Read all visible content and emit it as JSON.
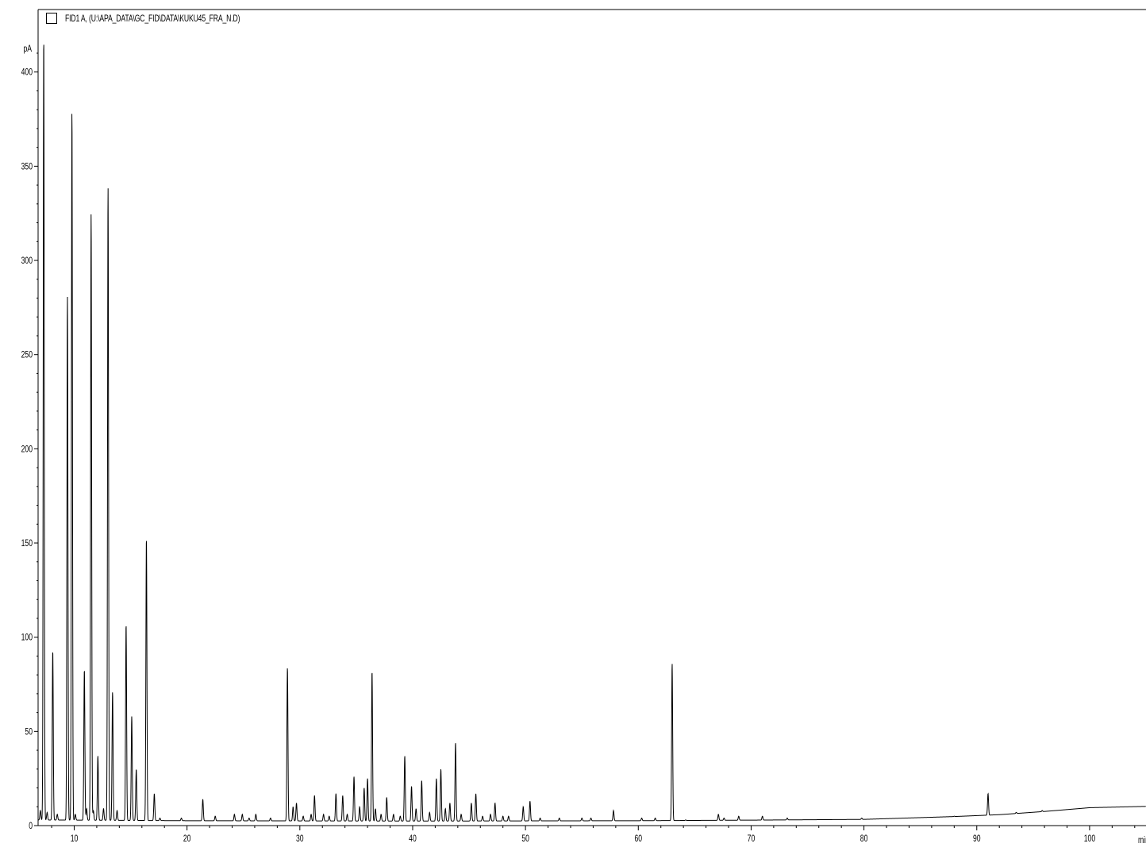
{
  "legend": {
    "label": "FID1 A, (U:\\APA_DATA\\GC_FID\\DATA\\KUKU45_FRA_N.D)"
  },
  "chart_data": {
    "type": "line",
    "title": "",
    "xlabel": "min",
    "ylabel": "pA",
    "xlim": [
      6.8,
      105
    ],
    "ylim": [
      0,
      418
    ],
    "x_ticks": [
      10,
      20,
      30,
      40,
      50,
      60,
      70,
      80,
      90,
      100
    ],
    "y_ticks": [
      0,
      50,
      100,
      150,
      200,
      250,
      300,
      350,
      400
    ],
    "grid": false,
    "line_color": "#000000",
    "series": [
      {
        "baseline": [
          [
            6.8,
            3.0
          ],
          [
            20,
            2.6
          ],
          [
            40,
            2.4
          ],
          [
            60,
            2.6
          ],
          [
            70,
            2.9
          ],
          [
            80,
            3.3
          ],
          [
            88,
            4.8
          ],
          [
            92,
            5.8
          ],
          [
            96,
            7.5
          ],
          [
            100,
            9.5
          ],
          [
            105,
            10.2
          ]
        ],
        "peaks": [
          [
            7.0,
            8
          ],
          [
            7.3,
            420
          ],
          [
            7.6,
            7
          ],
          [
            8.1,
            93
          ],
          [
            8.5,
            6
          ],
          [
            9.4,
            281
          ],
          [
            9.8,
            380
          ],
          [
            10.1,
            6
          ],
          [
            10.9,
            83
          ],
          [
            11.1,
            9
          ],
          [
            11.5,
            325
          ],
          [
            11.7,
            8
          ],
          [
            12.1,
            37
          ],
          [
            12.6,
            9
          ],
          [
            13.0,
            339
          ],
          [
            13.4,
            71
          ],
          [
            13.8,
            8
          ],
          [
            14.6,
            107
          ],
          [
            15.1,
            58
          ],
          [
            15.5,
            30
          ],
          [
            16.4,
            153
          ],
          [
            17.1,
            17
          ],
          [
            17.6,
            4
          ],
          [
            19.5,
            4
          ],
          [
            21.4,
            14
          ],
          [
            22.5,
            5
          ],
          [
            24.2,
            6
          ],
          [
            24.9,
            6
          ],
          [
            25.5,
            4
          ],
          [
            26.1,
            6
          ],
          [
            27.4,
            4
          ],
          [
            28.9,
            84
          ],
          [
            29.4,
            10
          ],
          [
            29.7,
            12
          ],
          [
            30.3,
            5
          ],
          [
            31.0,
            6
          ],
          [
            31.3,
            16
          ],
          [
            32.1,
            6
          ],
          [
            32.6,
            5
          ],
          [
            33.2,
            17
          ],
          [
            33.8,
            16
          ],
          [
            34.2,
            6
          ],
          [
            34.8,
            26
          ],
          [
            35.3,
            10
          ],
          [
            35.7,
            20
          ],
          [
            36.0,
            25
          ],
          [
            36.4,
            82
          ],
          [
            36.7,
            9
          ],
          [
            37.2,
            6
          ],
          [
            37.7,
            15
          ],
          [
            38.3,
            6
          ],
          [
            38.9,
            5
          ],
          [
            39.3,
            37
          ],
          [
            39.9,
            21
          ],
          [
            40.3,
            9
          ],
          [
            40.8,
            24
          ],
          [
            41.5,
            7
          ],
          [
            42.1,
            25
          ],
          [
            42.5,
            30
          ],
          [
            42.9,
            9
          ],
          [
            43.3,
            12
          ],
          [
            43.8,
            44
          ],
          [
            44.3,
            6
          ],
          [
            45.2,
            12
          ],
          [
            45.6,
            17
          ],
          [
            46.2,
            5
          ],
          [
            46.9,
            6
          ],
          [
            47.3,
            12
          ],
          [
            48.0,
            5
          ],
          [
            48.5,
            5
          ],
          [
            49.8,
            10
          ],
          [
            50.4,
            13
          ],
          [
            51.3,
            4
          ],
          [
            53.0,
            4
          ],
          [
            55.0,
            4
          ],
          [
            55.8,
            4
          ],
          [
            57.8,
            8
          ],
          [
            60.3,
            4
          ],
          [
            61.5,
            4
          ],
          [
            63.0,
            86
          ],
          [
            64.2,
            3
          ],
          [
            67.1,
            6
          ],
          [
            67.6,
            4
          ],
          [
            68.9,
            5
          ],
          [
            71.0,
            5
          ],
          [
            73.2,
            4
          ],
          [
            79.8,
            4
          ],
          [
            88.0,
            5
          ],
          [
            91.0,
            17
          ],
          [
            93.5,
            7
          ],
          [
            95.8,
            8
          ]
        ]
      }
    ]
  }
}
